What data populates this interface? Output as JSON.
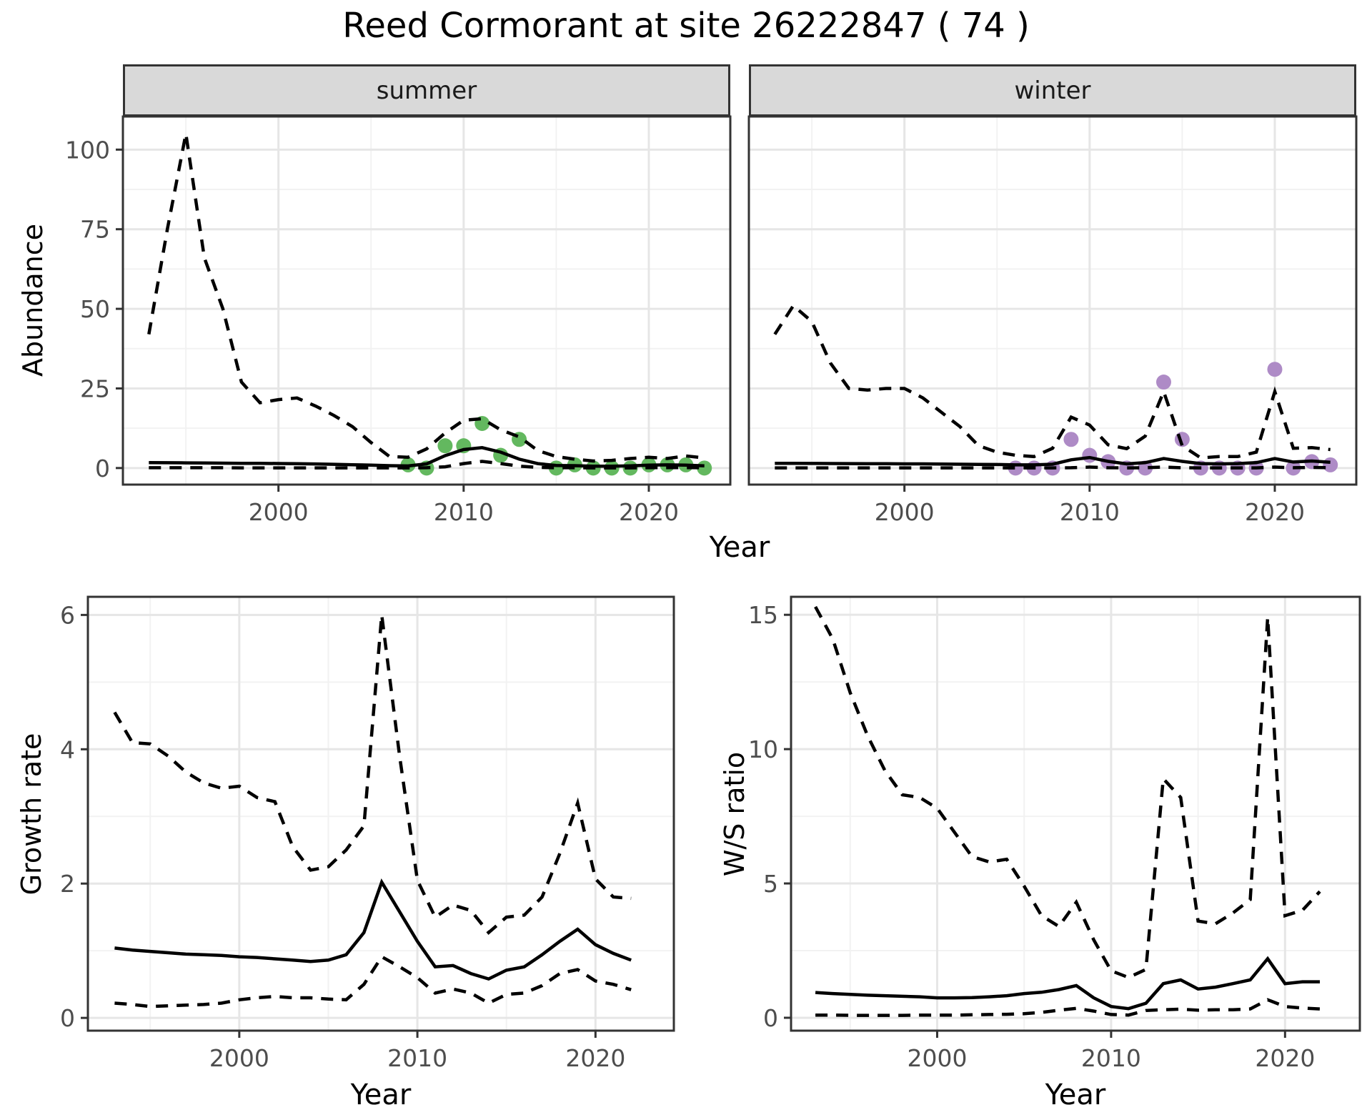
{
  "title": "Reed Cormorant at site 26222847 ( 74 )",
  "colors": {
    "summer_point": "#63b85f",
    "winter_point": "#ae8bc6",
    "line": "#000000",
    "grid_major": "#e6e6e6",
    "grid_minor": "#f2f2f2",
    "panel_border": "#333333",
    "panel_background": "#ffffff",
    "strip_fill": "#d9d9d9",
    "tick_text": "#4d4d4d",
    "tick_mark": "#333333"
  },
  "chart_data": [
    {
      "id": "abundance-summer",
      "type": "line",
      "facet_label": "summer",
      "xlabel": "Year",
      "ylabel": "Abundance",
      "xlim": [
        1991.6,
        2024.4
      ],
      "ylim": [
        -5.2,
        110.4
      ],
      "x_ticks": {
        "values": [
          2000,
          2010,
          2020
        ],
        "labels": [
          "2000",
          "2010",
          "2020"
        ]
      },
      "x_minor": [
        1995,
        2005,
        2015
      ],
      "y_ticks": {
        "values": [
          0,
          25,
          50,
          75,
          100
        ],
        "labels": [
          "0",
          "25",
          "50",
          "75",
          "100"
        ]
      },
      "y_minor": [
        12.5,
        37.5,
        62.5,
        87.5
      ],
      "years": [
        1993,
        1994,
        1995,
        1996,
        1997,
        1998,
        1999,
        2000,
        2001,
        2002,
        2003,
        2004,
        2005,
        2006,
        2007,
        2008,
        2009,
        2010,
        2011,
        2012,
        2013,
        2014,
        2015,
        2016,
        2017,
        2018,
        2019,
        2020,
        2021,
        2022,
        2023
      ],
      "series": [
        {
          "name": "upper_ci",
          "linetype": "dashed",
          "values": [
            42,
            75,
            105,
            66,
            50,
            27,
            20.5,
            21.5,
            22,
            19.5,
            16.5,
            13,
            8,
            3.6,
            3.4,
            6,
            11,
            15,
            15.5,
            12,
            9.8,
            5.5,
            3.6,
            2.8,
            2.2,
            2.4,
            3.0,
            3.4,
            3.0,
            3.8,
            3.2
          ]
        },
        {
          "name": "fit",
          "linetype": "solid",
          "values": [
            1.7,
            1.66,
            1.62,
            1.58,
            1.54,
            1.5,
            1.46,
            1.42,
            1.36,
            1.28,
            1.18,
            1.05,
            0.9,
            0.75,
            0.65,
            1.3,
            3.9,
            5.8,
            6.4,
            5.0,
            2.8,
            1.4,
            0.8,
            0.75,
            0.6,
            0.6,
            0.7,
            0.9,
            1.0,
            0.9,
            0.7
          ]
        },
        {
          "name": "lower_ci",
          "linetype": "dashed",
          "values": [
            0.1,
            0.1,
            0.1,
            0.1,
            0.1,
            0.05,
            0.05,
            0.05,
            0.05,
            0.05,
            0.05,
            0.05,
            0.05,
            0.05,
            0.05,
            0.1,
            0.4,
            1.4,
            2.1,
            1.4,
            0.6,
            0.2,
            0.1,
            0.1,
            0.05,
            0.05,
            0.05,
            0.1,
            0.15,
            0.15,
            0.1
          ]
        }
      ],
      "points": {
        "name": "observed-summer-counts",
        "color": "#63b85f",
        "years": [
          2007,
          2008,
          2009,
          2010,
          2011,
          2012,
          2013,
          2015,
          2016,
          2017,
          2018,
          2019,
          2020,
          2021,
          2022,
          2023
        ],
        "values": [
          1,
          0,
          7,
          7,
          14,
          4,
          9,
          0,
          1,
          0,
          0,
          0,
          1,
          1,
          1,
          0
        ]
      }
    },
    {
      "id": "abundance-winter",
      "type": "line",
      "facet_label": "winter",
      "xlabel": "Year",
      "ylabel": "Abundance",
      "xlim": [
        1991.6,
        2024.4
      ],
      "ylim": [
        -5.2,
        110.4
      ],
      "x_ticks": {
        "values": [
          2000,
          2010,
          2020
        ],
        "labels": [
          "2000",
          "2010",
          "2020"
        ]
      },
      "x_minor": [
        1995,
        2005,
        2015
      ],
      "y_ticks": {
        "values": [
          0,
          25,
          50,
          75,
          100
        ],
        "labels": [
          "0",
          "25",
          "50",
          "75",
          "100"
        ]
      },
      "y_minor": [
        12.5,
        37.5,
        62.5,
        87.5
      ],
      "years": [
        1993,
        1994,
        1995,
        1996,
        1997,
        1998,
        1999,
        2000,
        2001,
        2002,
        2003,
        2004,
        2005,
        2006,
        2007,
        2008,
        2009,
        2010,
        2011,
        2012,
        2013,
        2014,
        2015,
        2016,
        2017,
        2018,
        2019,
        2020,
        2021,
        2022,
        2023
      ],
      "series": [
        {
          "name": "upper_ci",
          "linetype": "dashed",
          "values": [
            42,
            51,
            46,
            33,
            25,
            24.5,
            25,
            25,
            22,
            17.5,
            13,
            7,
            5,
            4,
            3.6,
            6.2,
            16,
            13.5,
            7.3,
            6.1,
            10,
            24,
            7,
            3.2,
            3.6,
            3.6,
            5,
            24,
            6.2,
            6.4,
            5.8
          ]
        },
        {
          "name": "fit",
          "linetype": "solid",
          "values": [
            1.5,
            1.48,
            1.45,
            1.42,
            1.4,
            1.38,
            1.35,
            1.32,
            1.3,
            1.25,
            1.2,
            1.15,
            1.1,
            1.0,
            1.0,
            1.2,
            2.6,
            3.3,
            2.1,
            1.3,
            1.7,
            3.0,
            2.1,
            1.4,
            1.3,
            1.4,
            1.7,
            3.0,
            1.9,
            2.2,
            1.8
          ]
        },
        {
          "name": "lower_ci",
          "linetype": "dashed",
          "values": [
            0.05,
            0.05,
            0.05,
            0.05,
            0.05,
            0.05,
            0.05,
            0.05,
            0.05,
            0.05,
            0.05,
            0.05,
            0.05,
            0.05,
            0.05,
            0.05,
            0.1,
            0.3,
            0.1,
            0.05,
            0.1,
            0.3,
            0.1,
            0.05,
            0.05,
            0.05,
            0.05,
            0.3,
            0.1,
            0.2,
            0.1
          ]
        }
      ],
      "points": {
        "name": "observed-winter-counts",
        "color": "#ae8bc6",
        "years": [
          2006,
          2007,
          2008,
          2009,
          2010,
          2011,
          2012,
          2013,
          2014,
          2015,
          2016,
          2017,
          2018,
          2019,
          2020,
          2021,
          2022,
          2023
        ],
        "values": [
          0,
          0,
          0,
          9,
          4,
          2,
          0,
          0,
          27,
          9,
          0,
          0,
          0,
          0,
          31,
          0,
          2,
          1
        ]
      }
    },
    {
      "id": "growth-rate",
      "type": "line",
      "facet_label": "",
      "xlabel": "Year",
      "ylabel": "Growth rate",
      "xlim": [
        1991.5,
        2024.4
      ],
      "ylim": [
        -0.19,
        6.27
      ],
      "x_ticks": {
        "values": [
          2000,
          2010,
          2020
        ],
        "labels": [
          "2000",
          "2010",
          "2020"
        ]
      },
      "x_minor": [
        1995,
        2005,
        2015
      ],
      "y_ticks": {
        "values": [
          0,
          2,
          4,
          6
        ],
        "labels": [
          "0",
          "2",
          "4",
          "6"
        ]
      },
      "y_minor": [
        1,
        3,
        5
      ],
      "years": [
        1993,
        1994,
        1995,
        1996,
        1997,
        1998,
        1999,
        2000,
        2001,
        2002,
        2003,
        2004,
        2005,
        2006,
        2007,
        2008,
        2009,
        2010,
        2011,
        2012,
        2013,
        2014,
        2015,
        2016,
        2017,
        2018,
        2019,
        2020,
        2021,
        2022
      ],
      "series": [
        {
          "name": "upper_ci",
          "linetype": "dashed",
          "values": [
            4.55,
            4.1,
            4.08,
            3.9,
            3.66,
            3.5,
            3.42,
            3.45,
            3.28,
            3.22,
            2.55,
            2.2,
            2.25,
            2.5,
            2.86,
            6.0,
            3.9,
            2.05,
            1.5,
            1.68,
            1.6,
            1.27,
            1.5,
            1.53,
            1.8,
            2.45,
            3.2,
            2.07,
            1.8,
            1.78
          ]
        },
        {
          "name": "fit",
          "linetype": "solid",
          "values": [
            1.04,
            1.01,
            0.99,
            0.97,
            0.95,
            0.94,
            0.93,
            0.91,
            0.9,
            0.88,
            0.86,
            0.84,
            0.86,
            0.94,
            1.27,
            2.02,
            1.58,
            1.14,
            0.76,
            0.78,
            0.66,
            0.58,
            0.71,
            0.76,
            0.94,
            1.14,
            1.32,
            1.09,
            0.96,
            0.86
          ]
        },
        {
          "name": "lower_ci",
          "linetype": "dashed",
          "values": [
            0.22,
            0.2,
            0.17,
            0.18,
            0.19,
            0.2,
            0.22,
            0.27,
            0.3,
            0.32,
            0.3,
            0.3,
            0.28,
            0.27,
            0.5,
            0.91,
            0.76,
            0.6,
            0.37,
            0.43,
            0.37,
            0.22,
            0.35,
            0.37,
            0.48,
            0.66,
            0.72,
            0.55,
            0.5,
            0.42
          ]
        }
      ],
      "points": null
    },
    {
      "id": "ws-ratio",
      "type": "line",
      "facet_label": "",
      "xlabel": "Year",
      "ylabel": "W/S ratio",
      "xlim": [
        1991.6,
        2024.3
      ],
      "ylim": [
        -0.48,
        15.67
      ],
      "x_ticks": {
        "values": [
          2000,
          2010,
          2020
        ],
        "labels": [
          "2000",
          "2010",
          "2020"
        ]
      },
      "x_minor": [
        1995,
        2005,
        2015
      ],
      "y_ticks": {
        "values": [
          0,
          5,
          10,
          15
        ],
        "labels": [
          "0",
          "5",
          "10",
          "15"
        ]
      },
      "y_minor": [
        2.5,
        7.5,
        12.5
      ],
      "years": [
        1993,
        1994,
        1995,
        1996,
        1997,
        1998,
        1999,
        2000,
        2001,
        2002,
        2003,
        2004,
        2005,
        2006,
        2007,
        2008,
        2009,
        2010,
        2011,
        2012,
        2013,
        2014,
        2015,
        2016,
        2017,
        2018,
        2019,
        2020,
        2021,
        2022
      ],
      "series": [
        {
          "name": "upper_ci",
          "linetype": "dashed",
          "values": [
            15.3,
            14.1,
            12.1,
            10.5,
            9.2,
            8.3,
            8.2,
            7.8,
            6.9,
            6.0,
            5.8,
            5.9,
            4.9,
            3.8,
            3.4,
            4.3,
            2.9,
            1.75,
            1.5,
            1.8,
            8.9,
            8.2,
            3.6,
            3.5,
            3.9,
            4.4,
            14.9,
            3.8,
            4.0,
            4.7
          ]
        },
        {
          "name": "fit",
          "linetype": "solid",
          "values": [
            0.94,
            0.9,
            0.87,
            0.84,
            0.82,
            0.8,
            0.78,
            0.74,
            0.74,
            0.75,
            0.78,
            0.82,
            0.9,
            0.95,
            1.05,
            1.2,
            0.74,
            0.42,
            0.34,
            0.54,
            1.27,
            1.41,
            1.07,
            1.14,
            1.27,
            1.41,
            2.2,
            1.27,
            1.34,
            1.34
          ]
        },
        {
          "name": "lower_ci",
          "linetype": "dashed",
          "values": [
            0.1,
            0.1,
            0.09,
            0.09,
            0.09,
            0.09,
            0.1,
            0.1,
            0.1,
            0.11,
            0.12,
            0.13,
            0.15,
            0.2,
            0.28,
            0.35,
            0.25,
            0.12,
            0.1,
            0.27,
            0.3,
            0.32,
            0.28,
            0.3,
            0.3,
            0.33,
            0.67,
            0.42,
            0.36,
            0.33
          ]
        }
      ],
      "points": null
    }
  ]
}
